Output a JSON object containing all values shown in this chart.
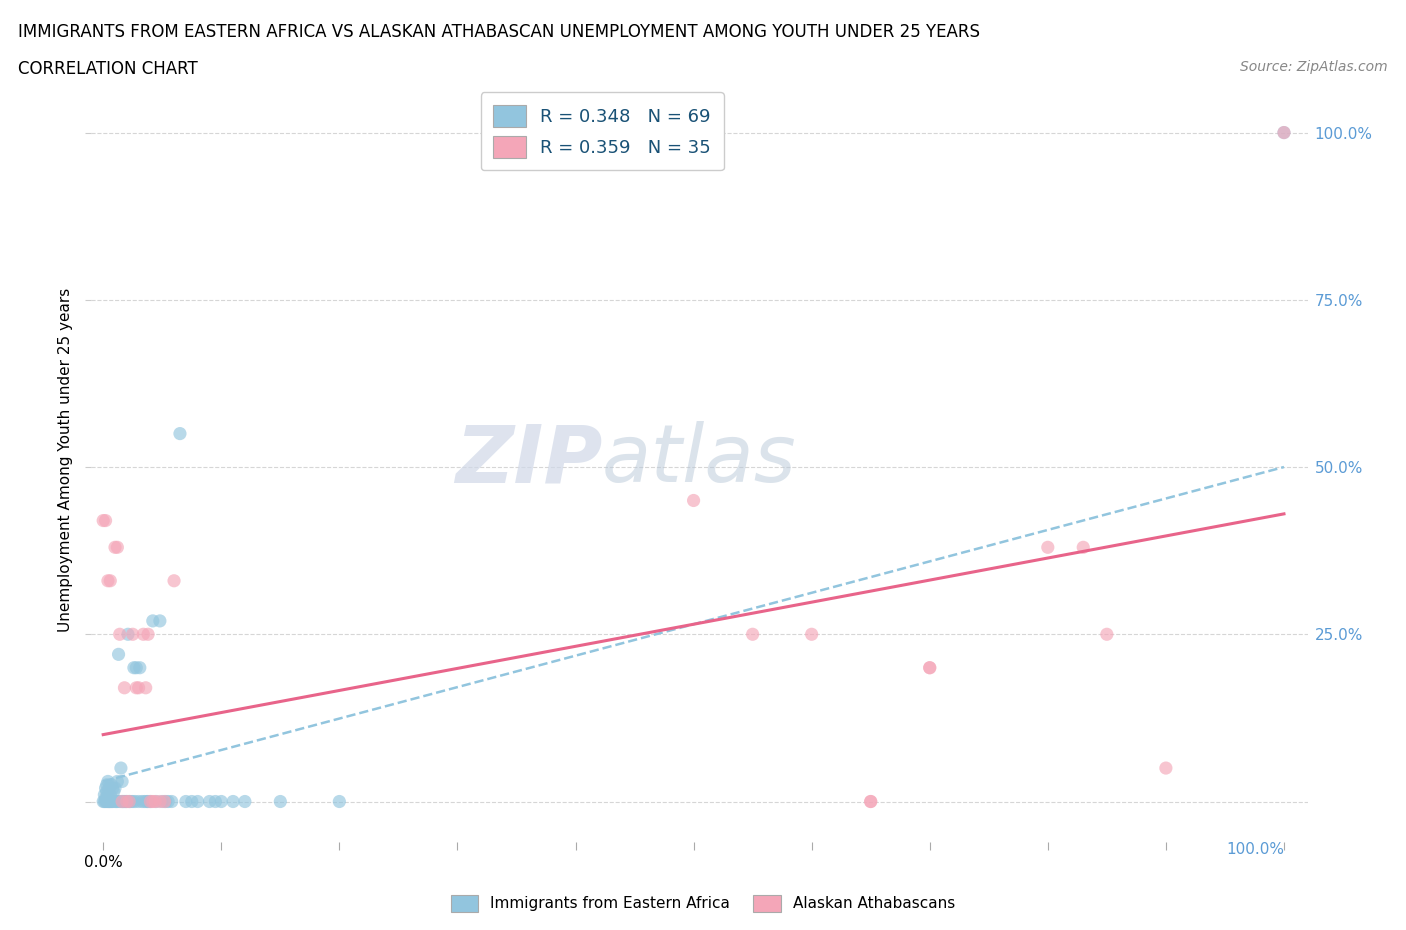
{
  "title_line1": "IMMIGRANTS FROM EASTERN AFRICA VS ALASKAN ATHABASCAN UNEMPLOYMENT AMONG YOUTH UNDER 25 YEARS",
  "title_line2": "CORRELATION CHART",
  "source_text": "Source: ZipAtlas.com",
  "ylabel": "Unemployment Among Youth under 25 years",
  "watermark_zip": "ZIP",
  "watermark_atlas": "atlas",
  "blue_R": 0.348,
  "blue_N": 69,
  "pink_R": 0.359,
  "pink_N": 35,
  "blue_color": "#92c5de",
  "pink_color": "#f4a6b8",
  "blue_scatter": [
    [
      0.0,
      0.0
    ],
    [
      0.001,
      0.0
    ],
    [
      0.001,
      0.01
    ],
    [
      0.002,
      0.0
    ],
    [
      0.002,
      0.005
    ],
    [
      0.002,
      0.02
    ],
    [
      0.003,
      0.0
    ],
    [
      0.003,
      0.015
    ],
    [
      0.003,
      0.025
    ],
    [
      0.004,
      0.0
    ],
    [
      0.004,
      0.01
    ],
    [
      0.004,
      0.03
    ],
    [
      0.005,
      0.0
    ],
    [
      0.005,
      0.02
    ],
    [
      0.005,
      0.0
    ],
    [
      0.006,
      0.01
    ],
    [
      0.006,
      0.0
    ],
    [
      0.007,
      0.025
    ],
    [
      0.007,
      0.0
    ],
    [
      0.008,
      0.02
    ],
    [
      0.008,
      0.0
    ],
    [
      0.009,
      0.015
    ],
    [
      0.01,
      0.0
    ],
    [
      0.01,
      0.02
    ],
    [
      0.011,
      0.0
    ],
    [
      0.012,
      0.0
    ],
    [
      0.012,
      0.03
    ],
    [
      0.013,
      0.22
    ],
    [
      0.014,
      0.0
    ],
    [
      0.015,
      0.05
    ],
    [
      0.016,
      0.0
    ],
    [
      0.016,
      0.03
    ],
    [
      0.017,
      0.0
    ],
    [
      0.018,
      0.0
    ],
    [
      0.019,
      0.0
    ],
    [
      0.02,
      0.0
    ],
    [
      0.021,
      0.25
    ],
    [
      0.022,
      0.0
    ],
    [
      0.023,
      0.0
    ],
    [
      0.025,
      0.0
    ],
    [
      0.026,
      0.2
    ],
    [
      0.027,
      0.0
    ],
    [
      0.028,
      0.2
    ],
    [
      0.03,
      0.0
    ],
    [
      0.031,
      0.2
    ],
    [
      0.033,
      0.0
    ],
    [
      0.035,
      0.0
    ],
    [
      0.037,
      0.0
    ],
    [
      0.038,
      0.0
    ],
    [
      0.04,
      0.0
    ],
    [
      0.042,
      0.27
    ],
    [
      0.045,
      0.0
    ],
    [
      0.048,
      0.27
    ],
    [
      0.05,
      0.0
    ],
    [
      0.053,
      0.0
    ],
    [
      0.055,
      0.0
    ],
    [
      0.058,
      0.0
    ],
    [
      0.065,
      0.55
    ],
    [
      0.07,
      0.0
    ],
    [
      0.075,
      0.0
    ],
    [
      0.08,
      0.0
    ],
    [
      0.09,
      0.0
    ],
    [
      0.095,
      0.0
    ],
    [
      0.1,
      0.0
    ],
    [
      0.11,
      0.0
    ],
    [
      0.12,
      0.0
    ],
    [
      0.15,
      0.0
    ],
    [
      0.2,
      0.0
    ],
    [
      1.0,
      1.0
    ]
  ],
  "pink_scatter": [
    [
      0.0,
      0.42
    ],
    [
      0.002,
      0.42
    ],
    [
      0.004,
      0.33
    ],
    [
      0.006,
      0.33
    ],
    [
      0.01,
      0.38
    ],
    [
      0.012,
      0.38
    ],
    [
      0.014,
      0.25
    ],
    [
      0.016,
      0.0
    ],
    [
      0.018,
      0.17
    ],
    [
      0.02,
      0.0
    ],
    [
      0.022,
      0.0
    ],
    [
      0.025,
      0.25
    ],
    [
      0.028,
      0.17
    ],
    [
      0.03,
      0.17
    ],
    [
      0.034,
      0.25
    ],
    [
      0.036,
      0.17
    ],
    [
      0.038,
      0.25
    ],
    [
      0.04,
      0.0
    ],
    [
      0.042,
      0.0
    ],
    [
      0.044,
      0.0
    ],
    [
      0.048,
      0.0
    ],
    [
      0.052,
      0.0
    ],
    [
      0.06,
      0.33
    ],
    [
      0.5,
      0.45
    ],
    [
      0.55,
      0.25
    ],
    [
      0.6,
      0.25
    ],
    [
      0.65,
      0.0
    ],
    [
      0.65,
      0.0
    ],
    [
      0.7,
      0.2
    ],
    [
      0.7,
      0.2
    ],
    [
      0.8,
      0.38
    ],
    [
      0.83,
      0.38
    ],
    [
      0.85,
      0.25
    ],
    [
      0.9,
      0.05
    ],
    [
      1.0,
      1.0
    ]
  ],
  "blue_trendline_x": [
    0.0,
    1.0
  ],
  "blue_trendline_y": [
    0.03,
    0.5
  ],
  "pink_trendline_x": [
    0.0,
    1.0
  ],
  "pink_trendline_y": [
    0.1,
    0.43
  ],
  "x_ticks": [
    0.0,
    0.1,
    0.2,
    0.3,
    0.4,
    0.5,
    0.6,
    0.7,
    0.8,
    0.9,
    1.0
  ],
  "x_tick_labels_show": [
    0.0,
    1.0
  ],
  "y_ticks": [
    0.0,
    0.25,
    0.5,
    0.75,
    1.0
  ],
  "y_tick_labels": [
    "",
    "25.0%",
    "50.0%",
    "75.0%",
    "100.0%"
  ],
  "grid_color": "#cccccc",
  "background_color": "#ffffff",
  "title_fontsize": 12,
  "subtitle_fontsize": 12,
  "axis_label_fontsize": 11,
  "tick_fontsize": 11,
  "legend_fontsize": 13,
  "source_fontsize": 10,
  "right_tick_color": "#5b9bd5",
  "scatter_alpha": 0.65,
  "scatter_size": 90
}
